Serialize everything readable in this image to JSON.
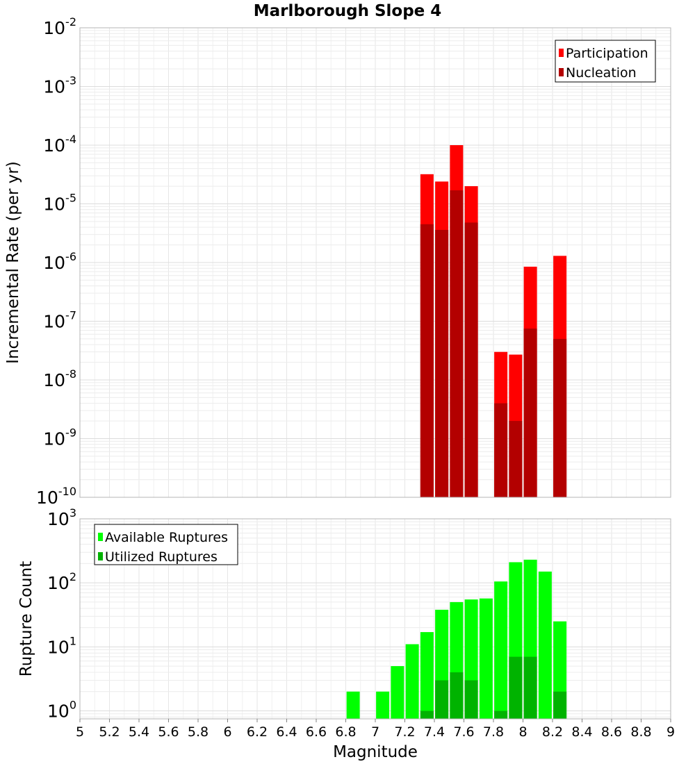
{
  "chart_data": [
    {
      "type": "bar",
      "title": "Marlborough Slope 4",
      "xlabel": "",
      "ylabel": "Incremental Rate (per yr)",
      "yscale": "log",
      "ylim": [
        1e-10,
        0.01
      ],
      "xlim": [
        5,
        9
      ],
      "grid": true,
      "legend_position": "top-right",
      "y_tick_exponents": [
        "-10",
        "-9",
        "-8",
        "-7",
        "-6",
        "-5",
        "-4",
        "-3",
        "-2"
      ],
      "x": [
        7.35,
        7.45,
        7.55,
        7.65,
        7.85,
        7.95,
        8.05,
        8.25
      ],
      "series": [
        {
          "name": "Participation",
          "color": "#ff0000",
          "values": [
            3.2e-05,
            2.4e-05,
            0.0001,
            2e-05,
            3e-08,
            2.7e-08,
            8.5e-07,
            1.3e-06
          ]
        },
        {
          "name": "Nucleation",
          "color": "#b30000",
          "values": [
            4.5e-06,
            3.6e-06,
            1.7e-05,
            4.8e-06,
            4e-09,
            2e-09,
            7.5e-08,
            5e-08
          ]
        }
      ]
    },
    {
      "type": "bar",
      "title": "",
      "xlabel": "Magnitude",
      "ylabel": "Rupture Count",
      "yscale": "log",
      "ylim": [
        0.75,
        1000
      ],
      "xlim": [
        5,
        9
      ],
      "grid": true,
      "legend_position": "top-left",
      "y_tick_exponents": [
        "0",
        "1",
        "2",
        "3"
      ],
      "x_ticks": [
        "5",
        "5.2",
        "5.4",
        "5.6",
        "5.8",
        "6",
        "6.2",
        "6.4",
        "6.6",
        "6.8",
        "7",
        "7.2",
        "7.4",
        "7.6",
        "7.8",
        "8",
        "8.2",
        "8.4",
        "8.6",
        "8.8",
        "9"
      ],
      "series": [
        {
          "name": "Available Ruptures",
          "color": "#00ff00",
          "x": [
            6.85,
            7.05,
            7.15,
            7.25,
            7.35,
            7.45,
            7.55,
            7.65,
            7.75,
            7.85,
            7.95,
            8.05,
            8.15,
            8.25
          ],
          "values": [
            2,
            2,
            5,
            11,
            17,
            38,
            50,
            55,
            57,
            105,
            210,
            230,
            150,
            25
          ]
        },
        {
          "name": "Utilized Ruptures",
          "color": "#00b300",
          "x": [
            7.35,
            7.45,
            7.55,
            7.65,
            7.85,
            7.95,
            8.05,
            8.25
          ],
          "values": [
            1,
            3,
            4,
            3,
            1,
            7,
            7,
            2
          ]
        }
      ]
    }
  ]
}
